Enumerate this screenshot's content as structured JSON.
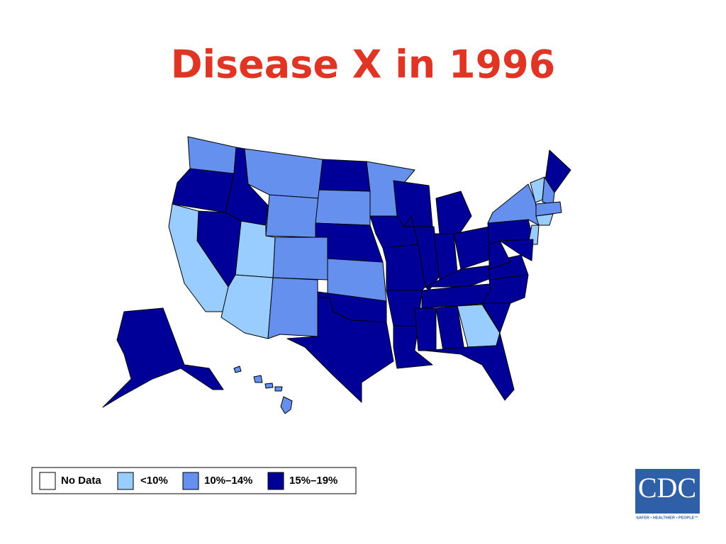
{
  "title": "Disease X in 1996",
  "legend": [
    {
      "label": "No Data",
      "color": "#ffffff"
    },
    {
      "label": "<10%",
      "color": "#99ccff"
    },
    {
      "label": "10%–14%",
      "color": "#6690ee"
    },
    {
      "label": "15%–19%",
      "color": "#000099"
    }
  ],
  "logo": {
    "text": "CDC",
    "tagline": "SAFER • HEALTHIER • PEOPLE™"
  }
}
